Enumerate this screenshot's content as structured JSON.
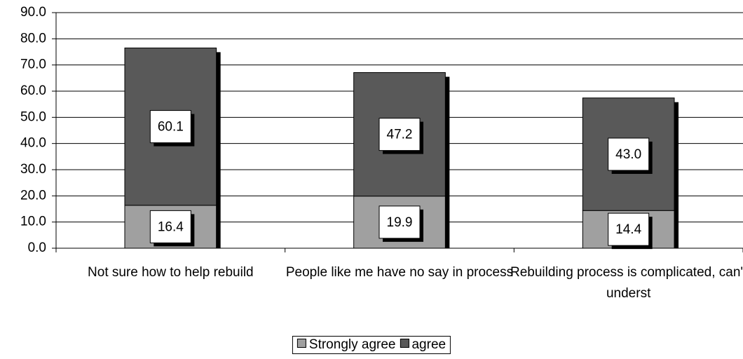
{
  "chart_data": {
    "type": "stacked-bar",
    "categories": [
      "Not sure how to help rebuild",
      "People like me have no say in process",
      "Rebuilding process is complicated, can't underst"
    ],
    "series": [
      {
        "name": "Strongly agree",
        "color": "#a0a0a0",
        "values": [
          16.4,
          19.9,
          14.4
        ],
        "value_labels": [
          "16.4",
          "19.9",
          "14.4"
        ]
      },
      {
        "name": "agree",
        "color": "#595959",
        "values": [
          60.1,
          47.2,
          43.0
        ],
        "value_labels": [
          "60.1",
          "47.2",
          "43.0"
        ]
      }
    ],
    "ylim": [
      0,
      90
    ],
    "yticks": [
      {
        "value": 0,
        "label": "0.0"
      },
      {
        "value": 10,
        "label": "10.0"
      },
      {
        "value": 20,
        "label": "20.0"
      },
      {
        "value": 30,
        "label": "30.0"
      },
      {
        "value": 40,
        "label": "40.0"
      },
      {
        "value": 50,
        "label": "50.0"
      },
      {
        "value": 60,
        "label": "60.0"
      },
      {
        "value": 70,
        "label": "70.0"
      },
      {
        "value": 80,
        "label": "80.0"
      },
      {
        "value": 90,
        "label": "90.0"
      }
    ],
    "grid": true,
    "legend": "bottom"
  }
}
